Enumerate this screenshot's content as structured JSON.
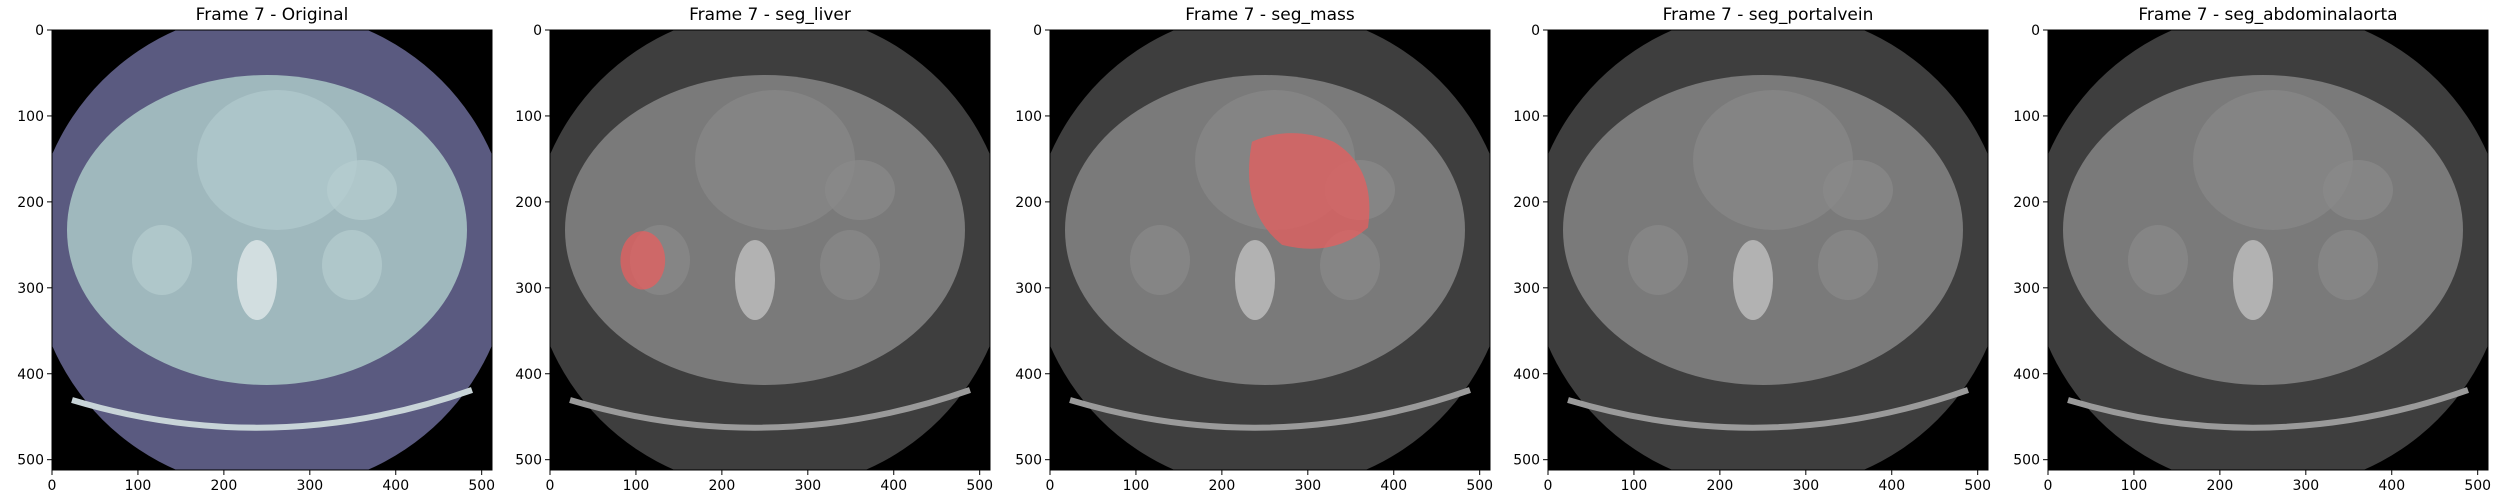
{
  "figure": {
    "panels": [
      {
        "title": "Frame 7 - Original",
        "overlay": "none",
        "tint": "#9fb8bd"
      },
      {
        "title": "Frame 7 - seg_liver",
        "overlay": "liver",
        "tint": "#7a7a7a"
      },
      {
        "title": "Frame 7 - seg_mass",
        "overlay": "mass",
        "tint": "#7a7a7a"
      },
      {
        "title": "Frame 7 - seg_portalvein",
        "overlay": "none",
        "tint": "#7a7a7a"
      },
      {
        "title": "Frame 7 - seg_abdominalaorta",
        "overlay": "none",
        "tint": "#7a7a7a"
      }
    ],
    "x_ticks": [
      "0",
      "100",
      "200",
      "300",
      "400",
      "500"
    ],
    "y_ticks": [
      "0",
      "100",
      "200",
      "300",
      "400",
      "500"
    ],
    "colors": {
      "background": "#000000",
      "original_fov": "#5a5a80",
      "segmentation_overlay": "#e06060"
    }
  }
}
